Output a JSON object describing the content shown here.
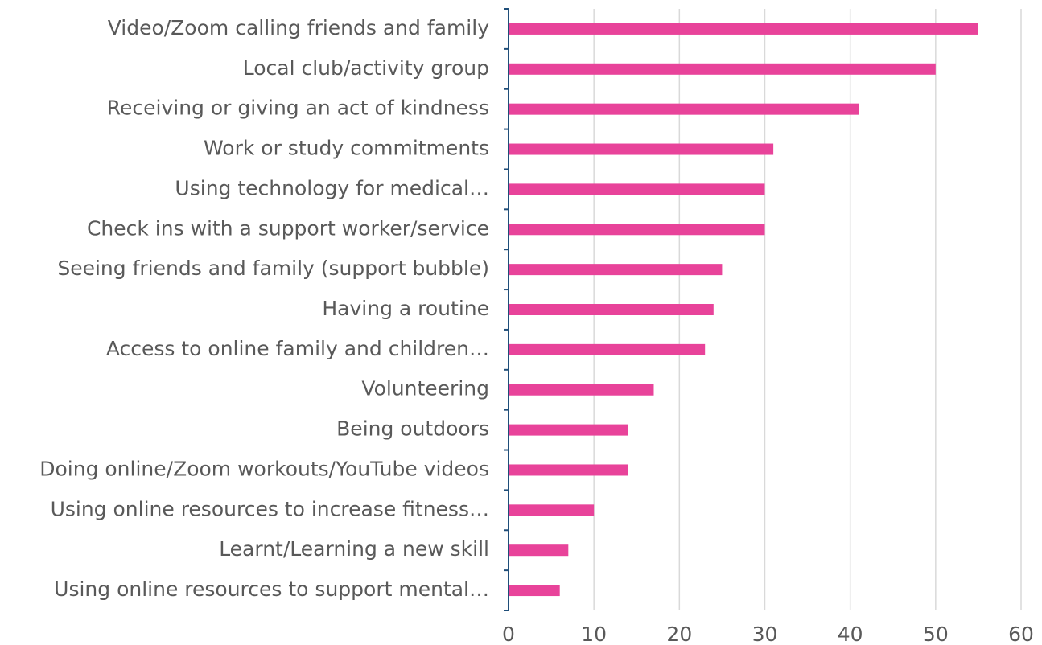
{
  "chart_data": {
    "type": "bar",
    "orientation": "horizontal",
    "categories": [
      "Video/Zoom calling friends and family",
      "Local club/activity group",
      "Receiving or giving an act of kindness",
      "Work or study commitments",
      "Using technology for medical…",
      "Check ins with a support worker/service",
      "Seeing friends and family (support bubble)",
      "Having a routine",
      "Access to online family and children…",
      "Volunteering",
      "Being outdoors",
      "Doing online/Zoom workouts/YouTube videos",
      "Using online resources to increase fitness…",
      "Learnt/Learning a new skill",
      "Using online resources to support mental…"
    ],
    "values": [
      55,
      50,
      41,
      31,
      30,
      30,
      25,
      24,
      23,
      17,
      14,
      14,
      10,
      7,
      6
    ],
    "color": "#e8439a",
    "xlim": [
      0,
      60
    ],
    "xticks": [
      0,
      10,
      20,
      30,
      40,
      50,
      60
    ],
    "grid": true
  }
}
